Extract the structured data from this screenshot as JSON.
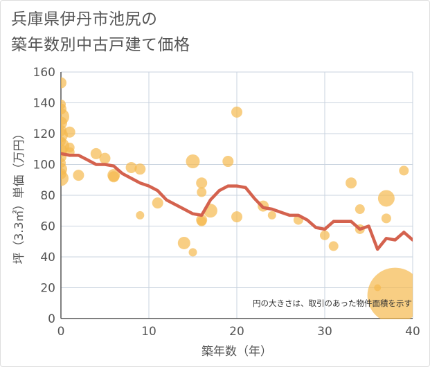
{
  "title_lines": [
    "兵庫県伊丹市池尻の",
    "築年数別中古戸建て価格"
  ],
  "colors": {
    "point": "#f5b94e",
    "line": "#d4624e",
    "grid": "#c9d3df",
    "axis": "#555555"
  },
  "chart_data": {
    "type": "scatter",
    "title": "兵庫県伊丹市池尻の築年数別中古戸建て価格",
    "xlabel": "築年数（年）",
    "ylabel": "坪（3.3㎡）単価（万円）",
    "xlim": [
      0,
      40
    ],
    "ylim": [
      0,
      160
    ],
    "xticks": [
      0,
      10,
      20,
      30,
      40
    ],
    "yticks": [
      0,
      20,
      40,
      60,
      80,
      100,
      120,
      140,
      160
    ],
    "grid": true,
    "note": "円の大きさは、取引のあった物件面積を示す",
    "points": [
      {
        "x": 0,
        "y": 153,
        "r": 8
      },
      {
        "x": 0,
        "y": 139,
        "r": 7
      },
      {
        "x": 0,
        "y": 136,
        "r": 8
      },
      {
        "x": 0,
        "y": 131,
        "r": 12
      },
      {
        "x": 0,
        "y": 127,
        "r": 9
      },
      {
        "x": 0,
        "y": 122,
        "r": 8
      },
      {
        "x": 0,
        "y": 119,
        "r": 10
      },
      {
        "x": 0,
        "y": 115,
        "r": 7
      },
      {
        "x": 0,
        "y": 112,
        "r": 12
      },
      {
        "x": 0,
        "y": 109,
        "r": 9
      },
      {
        "x": 0,
        "y": 105,
        "r": 8
      },
      {
        "x": 0,
        "y": 101,
        "r": 7
      },
      {
        "x": 0,
        "y": 97,
        "r": 9
      },
      {
        "x": 0,
        "y": 94,
        "r": 8
      },
      {
        "x": 0,
        "y": 91,
        "r": 11
      },
      {
        "x": 1,
        "y": 121,
        "r": 8
      },
      {
        "x": 1,
        "y": 111,
        "r": 7
      },
      {
        "x": 1,
        "y": 108,
        "r": 7
      },
      {
        "x": 2,
        "y": 93,
        "r": 8
      },
      {
        "x": 4,
        "y": 107,
        "r": 8
      },
      {
        "x": 5,
        "y": 104,
        "r": 8
      },
      {
        "x": 6,
        "y": 93,
        "r": 9
      },
      {
        "x": 6,
        "y": 92,
        "r": 8
      },
      {
        "x": 8,
        "y": 98,
        "r": 8
      },
      {
        "x": 9,
        "y": 97,
        "r": 8
      },
      {
        "x": 9,
        "y": 67,
        "r": 6
      },
      {
        "x": 11,
        "y": 75,
        "r": 8
      },
      {
        "x": 14,
        "y": 49,
        "r": 9
      },
      {
        "x": 15,
        "y": 102,
        "r": 10
      },
      {
        "x": 15,
        "y": 43,
        "r": 6
      },
      {
        "x": 16,
        "y": 88,
        "r": 8
      },
      {
        "x": 16,
        "y": 82,
        "r": 7
      },
      {
        "x": 16,
        "y": 64,
        "r": 8
      },
      {
        "x": 16,
        "y": 63,
        "r": 7
      },
      {
        "x": 17,
        "y": 70,
        "r": 10
      },
      {
        "x": 19,
        "y": 102,
        "r": 8
      },
      {
        "x": 20,
        "y": 134,
        "r": 8
      },
      {
        "x": 20,
        "y": 66,
        "r": 8
      },
      {
        "x": 23,
        "y": 73,
        "r": 8
      },
      {
        "x": 24,
        "y": 67,
        "r": 6
      },
      {
        "x": 27,
        "y": 64,
        "r": 7
      },
      {
        "x": 30,
        "y": 54,
        "r": 7
      },
      {
        "x": 31,
        "y": 47,
        "r": 7
      },
      {
        "x": 33,
        "y": 88,
        "r": 8
      },
      {
        "x": 34,
        "y": 71,
        "r": 7
      },
      {
        "x": 34,
        "y": 58,
        "r": 7
      },
      {
        "x": 36,
        "y": 20,
        "r": 5
      },
      {
        "x": 37,
        "y": 78,
        "r": 12
      },
      {
        "x": 37,
        "y": 65,
        "r": 7
      },
      {
        "x": 38,
        "y": 15,
        "r": 40
      },
      {
        "x": 39,
        "y": 96,
        "r": 7
      }
    ],
    "trend": {
      "x": [
        0,
        1,
        2,
        3,
        4,
        5,
        6,
        7,
        8,
        9,
        10,
        11,
        12,
        13,
        14,
        15,
        16,
        17,
        18,
        19,
        20,
        21,
        22,
        23,
        24,
        25,
        26,
        27,
        28,
        29,
        30,
        31,
        32,
        33,
        34,
        35,
        36,
        37,
        38,
        39,
        40
      ],
      "y": [
        107,
        106,
        106,
        103,
        100,
        100,
        99,
        94,
        91,
        88,
        86,
        83,
        77,
        74,
        71,
        68,
        67,
        77,
        83,
        86,
        86,
        85,
        78,
        72,
        71,
        69,
        67,
        67,
        64,
        59,
        58,
        63,
        63,
        63,
        58,
        60,
        45,
        52,
        51,
        56,
        51
      ]
    }
  }
}
